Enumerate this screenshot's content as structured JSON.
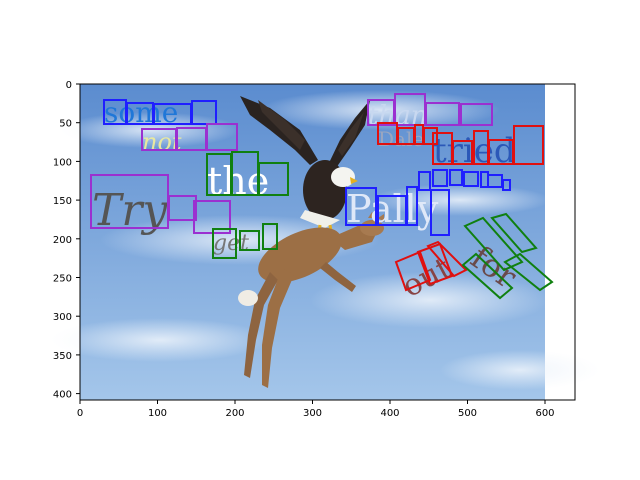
{
  "image": {
    "description_colors": {
      "sky_top": "#5f8fd0",
      "sky_bottom": "#9fc3ea",
      "cloud": "#dfe9f5"
    },
    "words": [
      {
        "text": "some",
        "color": "#1f77d8"
      },
      {
        "text": "not",
        "color": "#e8e8a0"
      },
      {
        "text": "the",
        "color": "#ffffff"
      },
      {
        "text": "Try",
        "color": "#555555"
      },
      {
        "text": "get",
        "color": "#777777"
      },
      {
        "text": "than",
        "color": "#c8d8f0"
      },
      {
        "text": "Dale",
        "color": "#9aa6c0"
      },
      {
        "text": "tried",
        "color": "#2b58b8"
      },
      {
        "text": "Pally",
        "color": "#dfe8f8"
      },
      {
        "text": "out",
        "color": "#884444"
      },
      {
        "text": "for",
        "color": "#6a4a4a"
      }
    ],
    "box_colors": {
      "blue": "#1f1fff",
      "purple": "#9b30d0",
      "green": "#108010",
      "red": "#e01010"
    }
  },
  "axes": {
    "x_ticks": [
      "0",
      "100",
      "200",
      "300",
      "400",
      "500",
      "600"
    ],
    "y_ticks": [
      "0",
      "50",
      "100",
      "150",
      "200",
      "250",
      "300",
      "350",
      "400"
    ]
  }
}
